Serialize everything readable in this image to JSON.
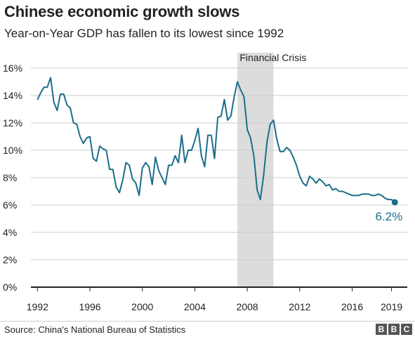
{
  "chart_data": {
    "type": "line",
    "title": "Chinese economic growth slows",
    "subtitle": "Year-on-Year GDP has fallen to its lowest since 1992",
    "xlabel": "",
    "ylabel": "",
    "xlim": [
      1991.5,
      2020.2
    ],
    "ylim": [
      0,
      16
    ],
    "yticks": [
      0,
      2,
      4,
      6,
      8,
      10,
      12,
      14,
      16
    ],
    "ytick_labels": [
      "0%",
      "2%",
      "4%",
      "6%",
      "8%",
      "10%",
      "12%",
      "14%",
      "16%"
    ],
    "xticks": [
      1992,
      1996,
      2000,
      2004,
      2008,
      2012,
      2016,
      2019
    ],
    "xtick_labels": [
      "1992",
      "1996",
      "2000",
      "2004",
      "2008",
      "2012",
      "2016",
      "2019"
    ],
    "grid": true,
    "colors": {
      "line": "#1b6e8a",
      "shade": "#dcdcdc",
      "grid": "#cccccc",
      "axis": "#222222"
    },
    "shaded_region": {
      "label": "Financial Crisis",
      "start": 2007.25,
      "end": 2010.0
    },
    "end_label": "6.2%",
    "series": [
      {
        "x": [
          1992.0,
          1992.25,
          1992.5,
          1992.75,
          1993.0,
          1993.25,
          1993.5,
          1993.75,
          1994.0,
          1994.25,
          1994.5,
          1994.75,
          1995.0,
          1995.25,
          1995.5,
          1995.75,
          1996.0,
          1996.25,
          1996.5,
          1996.75,
          1997.0,
          1997.25,
          1997.5,
          1997.75,
          1998.0,
          1998.25,
          1998.5,
          1998.75,
          1999.0,
          1999.25,
          1999.5,
          1999.75,
          2000.0,
          2000.25,
          2000.5,
          2000.75,
          2001.0,
          2001.25,
          2001.5,
          2001.75,
          2002.0,
          2002.25,
          2002.5,
          2002.75,
          2003.0,
          2003.25,
          2003.5,
          2003.75,
          2004.0,
          2004.25,
          2004.5,
          2004.75,
          2005.0,
          2005.25,
          2005.5,
          2005.75,
          2006.0,
          2006.25,
          2006.5,
          2006.75,
          2007.0,
          2007.25,
          2007.5,
          2007.75,
          2008.0,
          2008.25,
          2008.5,
          2008.75,
          2009.0,
          2009.25,
          2009.5,
          2009.75,
          2010.0,
          2010.25,
          2010.5,
          2010.75,
          2011.0,
          2011.25,
          2011.5,
          2011.75,
          2012.0,
          2012.25,
          2012.5,
          2012.75,
          2013.0,
          2013.25,
          2013.5,
          2013.75,
          2014.0,
          2014.25,
          2014.5,
          2014.75,
          2015.0,
          2015.25,
          2015.5,
          2015.75,
          2016.0,
          2016.25,
          2016.5,
          2016.75,
          2017.0,
          2017.25,
          2017.5,
          2017.75,
          2018.0,
          2018.25,
          2018.5,
          2018.75,
          2019.0,
          2019.25
        ],
        "values": [
          13.7,
          14.2,
          14.6,
          14.6,
          15.3,
          13.5,
          12.9,
          14.1,
          14.1,
          13.3,
          13.1,
          12.0,
          11.9,
          11.0,
          10.5,
          10.9,
          11.0,
          9.4,
          9.2,
          10.3,
          10.1,
          10.0,
          8.6,
          8.6,
          7.3,
          6.9,
          7.8,
          9.1,
          8.9,
          7.9,
          7.6,
          6.7,
          8.7,
          9.1,
          8.8,
          7.5,
          9.5,
          8.5,
          8.0,
          7.5,
          8.9,
          8.9,
          9.6,
          9.1,
          11.1,
          9.1,
          10.0,
          10.0,
          10.7,
          11.6,
          9.6,
          8.8,
          11.1,
          11.1,
          9.4,
          12.4,
          12.5,
          13.7,
          12.2,
          12.5,
          13.9,
          15.0,
          14.4,
          13.9,
          11.5,
          10.9,
          9.6,
          7.1,
          6.4,
          8.2,
          10.6,
          11.9,
          12.2,
          10.8,
          9.9,
          9.9,
          10.2,
          10.0,
          9.5,
          8.9,
          8.1,
          7.6,
          7.4,
          8.1,
          7.9,
          7.6,
          7.9,
          7.7,
          7.4,
          7.5,
          7.1,
          7.2,
          7.0,
          7.0,
          6.9,
          6.8,
          6.7,
          6.7,
          6.7,
          6.8,
          6.8,
          6.8,
          6.7,
          6.7,
          6.8,
          6.7,
          6.5,
          6.4,
          6.4,
          6.2
        ]
      }
    ]
  },
  "footer": {
    "source": "Source: China's National Bureau of Statistics",
    "logo": [
      "B",
      "B",
      "C"
    ]
  }
}
